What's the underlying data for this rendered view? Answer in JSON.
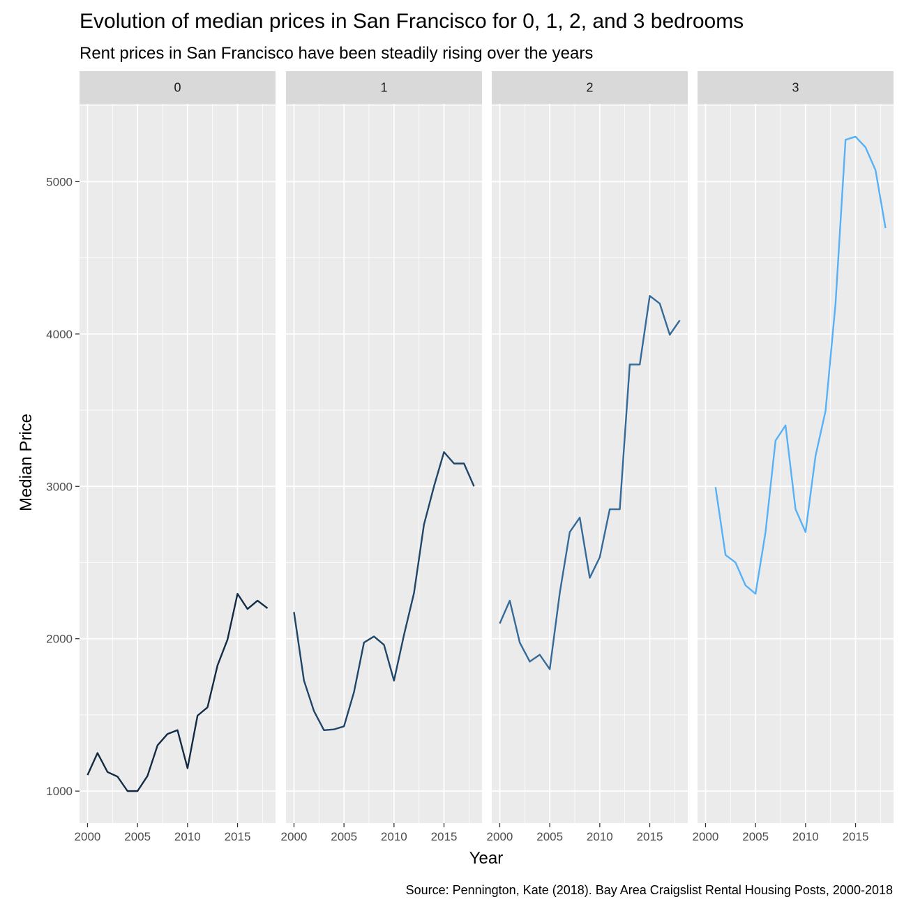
{
  "chart_data": {
    "type": "line",
    "title": "Evolution of median prices in San Francisco for 0, 1, 2, and 3 bedrooms",
    "subtitle": "Rent prices in San Francisco have been steadily rising over the years",
    "xlabel": "Year",
    "ylabel": "Median Price",
    "caption": "Source: Pennington, Kate (2018). Bay Area Craigslist Rental Housing Posts, 2000-2018",
    "xlim": [
      1999.2,
      2018.8
    ],
    "ylim": [
      790,
      5510
    ],
    "x_ticks": [
      2000,
      2005,
      2010,
      2015
    ],
    "y_ticks": [
      1000,
      2000,
      3000,
      4000,
      5000
    ],
    "grid": true,
    "legend": "none",
    "facets": [
      {
        "label": "0",
        "color": "#132B43",
        "x": [
          2000,
          2001,
          2002,
          2003,
          2004,
          2005,
          2006,
          2007,
          2008,
          2009,
          2010,
          2011,
          2012,
          2013,
          2014,
          2015,
          2016,
          2017,
          2018
        ],
        "values": [
          1105,
          1250,
          1125,
          1095,
          1000,
          1000,
          1100,
          1300,
          1375,
          1400,
          1150,
          1495,
          1550,
          1825,
          1995,
          2295,
          2195,
          2250,
          2200
        ]
      },
      {
        "label": "1",
        "color": "#1F4568",
        "x": [
          2000,
          2001,
          2002,
          2003,
          2004,
          2005,
          2006,
          2007,
          2008,
          2009,
          2010,
          2011,
          2012,
          2013,
          2014,
          2015,
          2016,
          2017,
          2018
        ],
        "values": [
          2175,
          1725,
          1525,
          1400,
          1405,
          1425,
          1650,
          1975,
          2015,
          1960,
          1725,
          2025,
          2300,
          2750,
          3000,
          3225,
          3150,
          3150,
          3000
        ]
      },
      {
        "label": "2",
        "color": "#336A98",
        "x": [
          2000,
          2001,
          2002,
          2003,
          2004,
          2005,
          2006,
          2007,
          2008,
          2009,
          2010,
          2011,
          2012,
          2013,
          2014,
          2015,
          2016,
          2017,
          2018
        ],
        "values": [
          2100,
          2250,
          1975,
          1850,
          1895,
          1800,
          2300,
          2700,
          2795,
          2400,
          2535,
          2850,
          2850,
          3800,
          3800,
          4250,
          4200,
          3995,
          4090
        ]
      },
      {
        "label": "3",
        "color": "#56B1F7",
        "x": [
          2001,
          2002,
          2003,
          2004,
          2005,
          2006,
          2007,
          2008,
          2009,
          2010,
          2011,
          2012,
          2013,
          2014,
          2015,
          2016,
          2017,
          2018
        ],
        "values": [
          2995,
          2550,
          2500,
          2350,
          2295,
          2700,
          3300,
          3400,
          2850,
          2700,
          3200,
          3495,
          4200,
          5275,
          5295,
          5225,
          5075,
          4695
        ]
      }
    ]
  }
}
